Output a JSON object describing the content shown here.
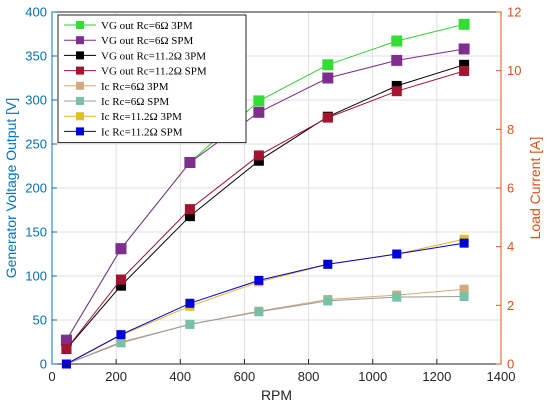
{
  "chart_data": {
    "type": "line",
    "xlabel": "RPM",
    "ylabel_left": "Generator Voltage Output [V]",
    "ylabel_right": "Load Current [A]",
    "xlim": [
      0,
      1400
    ],
    "ylim_left": [
      0,
      400
    ],
    "ylim_right": [
      0,
      12
    ],
    "xticks": [
      "0",
      "200",
      "400",
      "600",
      "800",
      "1000",
      "1200",
      "1400"
    ],
    "yticks_left": [
      "0",
      "50",
      "100",
      "150",
      "200",
      "250",
      "300",
      "350",
      "400"
    ],
    "yticks_right": [
      "0",
      "2",
      "4",
      "6",
      "8",
      "10",
      "12"
    ],
    "grid": true,
    "legend_position": "top-left",
    "left_axis_color": "#0072BD",
    "right_axis_color": "#D95319",
    "x": [
      45,
      215,
      430,
      645,
      860,
      1075,
      1285
    ],
    "series": [
      {
        "name": "VG out Rc=6Ω 3PM",
        "axis": "left",
        "color": "#33cc33",
        "marker_color": "#33dd33",
        "values": [
          27,
          131,
          229,
          299,
          340,
          367,
          386
        ]
      },
      {
        "name": "VG out Rc=6Ω SPM",
        "axis": "left",
        "color": "#7e2f8e",
        "marker_color": "#7e2f8e",
        "values": [
          27,
          131,
          229,
          286,
          325,
          345,
          358
        ]
      },
      {
        "name": "VG out Rc=11.2Ω 3PM",
        "axis": "left",
        "color": "#000000",
        "marker_color": "#000000",
        "values": [
          17,
          89,
          168,
          231,
          281,
          316,
          340
        ]
      },
      {
        "name": "VG out Rc=11.2Ω SPM",
        "axis": "left",
        "color": "#a2142f",
        "marker_color": "#a2142f",
        "values": [
          17,
          96,
          176,
          237,
          280,
          310,
          333
        ]
      },
      {
        "name": "Ic Rc=6Ω 3PM",
        "axis": "right",
        "color": "#d4a87a",
        "marker_color": "#d4a87a",
        "values": [
          0,
          0.75,
          1.35,
          1.8,
          2.2,
          2.35,
          2.55
        ]
      },
      {
        "name": "Ic Rc=6Ω SPM",
        "axis": "right",
        "color": "#999999",
        "marker_color": "#76c1a8",
        "values": [
          0,
          0.72,
          1.35,
          1.78,
          2.15,
          2.28,
          2.3
        ]
      },
      {
        "name": "Ic Rc=11.2Ω 3PM",
        "axis": "right",
        "color": "#edb120",
        "marker_color": "#e0c020",
        "values": [
          0,
          0.98,
          1.97,
          2.8,
          3.4,
          3.75,
          4.25
        ]
      },
      {
        "name": "Ic Rc=11.2Ω SPM",
        "axis": "right",
        "color": "#0000cc",
        "marker_color": "#0000dd",
        "values": [
          0,
          1.0,
          2.07,
          2.85,
          3.4,
          3.75,
          4.12
        ]
      }
    ]
  }
}
